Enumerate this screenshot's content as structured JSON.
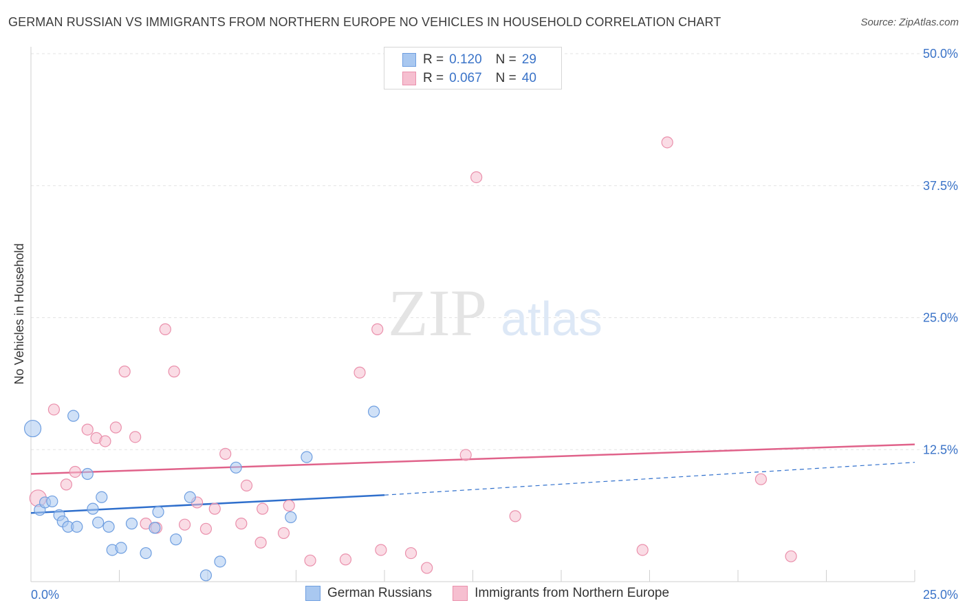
{
  "header": {
    "title": "GERMAN RUSSIAN VS IMMIGRANTS FROM NORTHERN EUROPE NO VEHICLES IN HOUSEHOLD CORRELATION CHART",
    "source": "Source: ZipAtlas.com"
  },
  "legend": {
    "rows": [
      {
        "r_label": "R =",
        "r_value": "0.120",
        "n_label": "N =",
        "n_value": "29"
      },
      {
        "r_label": "R =",
        "r_value": "0.067",
        "n_label": "N =",
        "n_value": "40"
      }
    ]
  },
  "watermark": {
    "zip": "ZIP",
    "atlas": "atlas"
  },
  "colors": {
    "blue_fill": "#a9c8f0",
    "blue_stroke": "#6e9ee0",
    "blue_line": "#2f6fcc",
    "pink_fill": "#f6bfd0",
    "pink_stroke": "#ea8fab",
    "pink_line": "#e0628a",
    "tick_label": "#3a73c8",
    "grid": "#e3e3e3"
  },
  "chart_data": {
    "type": "scatter",
    "title": "GERMAN RUSSIAN VS IMMIGRANTS FROM NORTHERN EUROPE NO VEHICLES IN HOUSEHOLD CORRELATION CHART",
    "xlabel": "",
    "ylabel": "No Vehicles in Household",
    "xlim": [
      0,
      25
    ],
    "ylim": [
      0,
      50
    ],
    "x_tick_labels": [
      "0.0%",
      "25.0%"
    ],
    "y_ticks": [
      12.5,
      25.0,
      37.5,
      50.0
    ],
    "y_tick_labels": [
      "12.5%",
      "25.0%",
      "37.5%",
      "50.0%"
    ],
    "grid": true,
    "legend_position": "top-center",
    "series": [
      {
        "name": "German Russians",
        "color": "#a9c8f0",
        "points": [
          {
            "x": 0.05,
            "y": 14.5,
            "big": true
          },
          {
            "x": 0.25,
            "y": 6.8
          },
          {
            "x": 0.4,
            "y": 7.5
          },
          {
            "x": 0.6,
            "y": 7.6
          },
          {
            "x": 0.8,
            "y": 6.3
          },
          {
            "x": 0.9,
            "y": 5.7
          },
          {
            "x": 1.05,
            "y": 5.2
          },
          {
            "x": 1.3,
            "y": 5.2
          },
          {
            "x": 1.2,
            "y": 15.7
          },
          {
            "x": 1.6,
            "y": 10.2
          },
          {
            "x": 1.75,
            "y": 6.9
          },
          {
            "x": 1.9,
            "y": 5.6
          },
          {
            "x": 2.0,
            "y": 8.0
          },
          {
            "x": 2.2,
            "y": 5.2
          },
          {
            "x": 2.3,
            "y": 3.0
          },
          {
            "x": 2.55,
            "y": 3.2
          },
          {
            "x": 2.85,
            "y": 5.5
          },
          {
            "x": 3.25,
            "y": 2.7
          },
          {
            "x": 3.5,
            "y": 5.1
          },
          {
            "x": 3.6,
            "y": 6.6
          },
          {
            "x": 4.1,
            "y": 4.0
          },
          {
            "x": 4.5,
            "y": 8.0
          },
          {
            "x": 4.95,
            "y": 0.6
          },
          {
            "x": 5.35,
            "y": 1.9
          },
          {
            "x": 5.8,
            "y": 10.8
          },
          {
            "x": 7.35,
            "y": 6.1
          },
          {
            "x": 7.8,
            "y": 11.8
          },
          {
            "x": 9.7,
            "y": 16.1
          }
        ],
        "trend": {
          "x": [
            0,
            10
          ],
          "y": [
            6.5,
            8.2
          ]
        },
        "trend_extension": {
          "x": [
            10,
            25
          ],
          "y": [
            8.2,
            11.3
          ]
        }
      },
      {
        "name": "Immigrants from Northern Europe",
        "color": "#f6bfd0",
        "points": [
          {
            "x": 0.2,
            "y": 7.9,
            "big": true
          },
          {
            "x": 0.65,
            "y": 16.3
          },
          {
            "x": 1.0,
            "y": 9.2
          },
          {
            "x": 1.25,
            "y": 10.4
          },
          {
            "x": 1.6,
            "y": 14.4
          },
          {
            "x": 1.85,
            "y": 13.6
          },
          {
            "x": 2.1,
            "y": 13.3
          },
          {
            "x": 2.4,
            "y": 14.6
          },
          {
            "x": 2.65,
            "y": 19.9
          },
          {
            "x": 2.95,
            "y": 13.7
          },
          {
            "x": 3.25,
            "y": 5.5
          },
          {
            "x": 3.55,
            "y": 5.1
          },
          {
            "x": 3.8,
            "y": 23.9
          },
          {
            "x": 4.05,
            "y": 19.9
          },
          {
            "x": 4.35,
            "y": 5.4
          },
          {
            "x": 4.7,
            "y": 7.5
          },
          {
            "x": 4.95,
            "y": 5.0
          },
          {
            "x": 5.2,
            "y": 6.9
          },
          {
            "x": 5.5,
            "y": 12.1
          },
          {
            "x": 5.95,
            "y": 5.5
          },
          {
            "x": 6.1,
            "y": 9.1
          },
          {
            "x": 6.5,
            "y": 3.7
          },
          {
            "x": 6.55,
            "y": 6.9
          },
          {
            "x": 7.15,
            "y": 4.6
          },
          {
            "x": 7.3,
            "y": 7.2
          },
          {
            "x": 7.9,
            "y": 2.0
          },
          {
            "x": 8.9,
            "y": 2.1
          },
          {
            "x": 9.3,
            "y": 19.8
          },
          {
            "x": 9.8,
            "y": 23.9
          },
          {
            "x": 9.9,
            "y": 3.0
          },
          {
            "x": 10.75,
            "y": 2.7
          },
          {
            "x": 11.2,
            "y": 1.3
          },
          {
            "x": 12.3,
            "y": 12.0
          },
          {
            "x": 12.6,
            "y": 38.3
          },
          {
            "x": 13.7,
            "y": 6.2
          },
          {
            "x": 17.3,
            "y": 3.0
          },
          {
            "x": 18.0,
            "y": 41.6
          },
          {
            "x": 20.65,
            "y": 9.7
          },
          {
            "x": 21.5,
            "y": 2.4
          }
        ],
        "trend": {
          "x": [
            0,
            25
          ],
          "y": [
            10.2,
            13.0
          ]
        }
      }
    ]
  }
}
